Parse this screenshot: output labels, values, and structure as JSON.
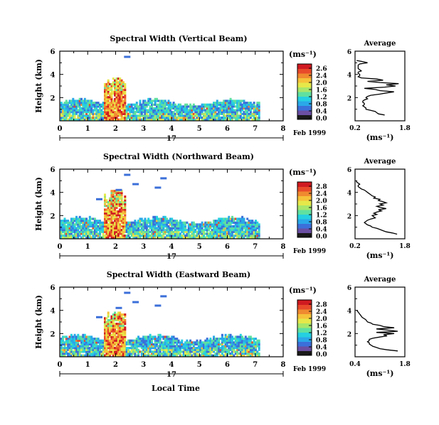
{
  "chart_data": [
    {
      "type": "heatmap",
      "title": "Spectral Width (Vertical Beam)",
      "ylabel": "Height (km)",
      "xlim": [
        0,
        8
      ],
      "ylim": [
        0,
        6
      ],
      "xticks": [
        "0",
        "1",
        "2",
        "3",
        "4",
        "5",
        "6",
        "7",
        "8"
      ],
      "yticks": [
        "6",
        "4",
        "2"
      ],
      "date_marker": "17",
      "date_label": "Feb 1999",
      "colorbar": {
        "unit": "(ms⁻¹)",
        "ticks": [
          "2.6",
          "2.4",
          "2.0",
          "1.6",
          "1.2",
          "0.8",
          "0.4",
          "0.0"
        ]
      },
      "average": {
        "title": "Average",
        "xlabel": "(ms⁻¹)",
        "xlim": [
          0.2,
          1.8
        ],
        "xticks": [
          "0.2",
          "1.8"
        ],
        "ylim": [
          0,
          6
        ],
        "yticks": [
          "6",
          "4",
          "2"
        ],
        "x": [
          1.15,
          0.95,
          0.9,
          0.85,
          0.7,
          0.55,
          0.55,
          0.5,
          0.45,
          0.5,
          0.5,
          0.45,
          0.45,
          0.5,
          0.6,
          0.55,
          0.6,
          0.7,
          1.0,
          1.2,
          1.45,
          1.0,
          0.85,
          0.5,
          1.15,
          1.5,
          1.2,
          1.6,
          1.0,
          0.6,
          1.1,
          0.9,
          0.4,
          0.3,
          0.35,
          0.35,
          0.3,
          0.3,
          0.4,
          0.35,
          0.3,
          0.3,
          0.3,
          0.3,
          0.35,
          0.6,
          0.45,
          0.25
        ],
        "y": [
          0.5,
          0.6,
          0.7,
          0.8,
          0.9,
          1.0,
          1.1,
          1.2,
          1.3,
          1.4,
          1.5,
          1.6,
          1.7,
          1.8,
          1.9,
          2.0,
          2.1,
          2.2,
          2.3,
          2.4,
          2.5,
          2.6,
          2.7,
          2.8,
          2.9,
          3.0,
          3.1,
          3.2,
          3.3,
          3.4,
          3.5,
          3.6,
          3.7,
          3.8,
          3.9,
          4.0,
          4.1,
          4.2,
          4.3,
          4.4,
          4.5,
          4.6,
          4.7,
          4.8,
          4.9,
          5.0,
          5.1,
          5.2
        ]
      }
    },
    {
      "type": "heatmap",
      "title": "Spectral Width (Northward Beam)",
      "ylabel": "Height (km)",
      "xlim": [
        0,
        8
      ],
      "ylim": [
        0,
        6
      ],
      "xticks": [
        "0",
        "1",
        "2",
        "3",
        "4",
        "5",
        "6",
        "7",
        "8"
      ],
      "yticks": [
        "6",
        "4",
        "2"
      ],
      "date_marker": "17",
      "date_label": "Feb 1999",
      "colorbar": {
        "unit": "(ms⁻¹)",
        "ticks": [
          "2.8",
          "2.4",
          "2.0",
          "1.6",
          "1.2",
          "0.8",
          "0.4",
          "0.0"
        ]
      },
      "average": {
        "title": "Average",
        "xlabel": "(ms⁻¹)",
        "xlim": [
          0.2,
          1.8
        ],
        "xticks": [
          "0.2",
          "1.8"
        ],
        "ylim": [
          0,
          6
        ],
        "yticks": [
          "6",
          "4",
          "2"
        ],
        "x": [
          1.55,
          1.4,
          1.2,
          1.1,
          1.0,
          0.9,
          0.75,
          0.7,
          0.6,
          0.55,
          0.5,
          0.55,
          0.6,
          0.7,
          0.85,
          0.8,
          0.75,
          0.9,
          0.8,
          0.9,
          1.05,
          0.95,
          1.2,
          1.0,
          0.9,
          1.1,
          1.0,
          1.2,
          1.1,
          0.95,
          1.0,
          0.8,
          0.85,
          0.75,
          0.7,
          0.65,
          0.6,
          0.55,
          0.5,
          0.4,
          0.35,
          0.3,
          0.3,
          0.35,
          0.3,
          0.25,
          0.25
        ],
        "y": [
          0.4,
          0.5,
          0.6,
          0.7,
          0.8,
          0.9,
          1.0,
          1.1,
          1.2,
          1.3,
          1.4,
          1.5,
          1.6,
          1.7,
          1.8,
          1.9,
          2.0,
          2.1,
          2.2,
          2.3,
          2.4,
          2.5,
          2.6,
          2.7,
          2.8,
          2.9,
          3.0,
          3.1,
          3.2,
          3.3,
          3.4,
          3.5,
          3.6,
          3.7,
          3.8,
          3.9,
          4.0,
          4.1,
          4.2,
          4.3,
          4.4,
          4.5,
          4.6,
          4.7,
          4.8,
          4.9,
          5.0
        ]
      }
    },
    {
      "type": "heatmap",
      "title": "Spectral Width (Eastward Beam)",
      "ylabel": "Height (km)",
      "xlabel": "Local Time",
      "xlim": [
        0,
        8
      ],
      "ylim": [
        0,
        6
      ],
      "xticks": [
        "0",
        "1",
        "2",
        "3",
        "4",
        "5",
        "6",
        "7",
        "8"
      ],
      "yticks": [
        "6",
        "4",
        "2"
      ],
      "date_marker": "17",
      "date_label": "Feb 1999",
      "colorbar": {
        "unit": "(ms⁻¹)",
        "ticks": [
          "2.8",
          "2.4",
          "2.0",
          "1.6",
          "1.2",
          "0.8",
          "0.4",
          "0.0"
        ]
      },
      "average": {
        "title": "Average",
        "xlabel": "(ms⁻¹)",
        "xlim": [
          0.4,
          1.8
        ],
        "xticks": [
          "0.4",
          "1.8"
        ],
        "ylim": [
          0,
          6
        ],
        "yticks": [
          "6",
          "4",
          "2"
        ],
        "x": [
          1.6,
          1.3,
          1.1,
          1.0,
          0.9,
          0.85,
          0.8,
          0.8,
          0.75,
          0.8,
          0.8,
          0.9,
          1.1,
          1.3,
          1.2,
          1.5,
          1.0,
          1.6,
          1.3,
          1.0,
          1.5,
          1.2,
          1.1,
          0.9,
          0.85,
          0.75,
          0.7,
          0.6,
          0.55,
          0.5,
          0.45
        ],
        "y": [
          0.5,
          0.6,
          0.7,
          0.8,
          0.9,
          1.0,
          1.1,
          1.2,
          1.3,
          1.4,
          1.5,
          1.6,
          1.7,
          1.8,
          1.9,
          2.0,
          2.1,
          2.2,
          2.3,
          2.4,
          2.5,
          2.6,
          2.7,
          2.8,
          2.9,
          3.0,
          3.2,
          3.4,
          3.6,
          3.8,
          4.0
        ]
      }
    }
  ]
}
